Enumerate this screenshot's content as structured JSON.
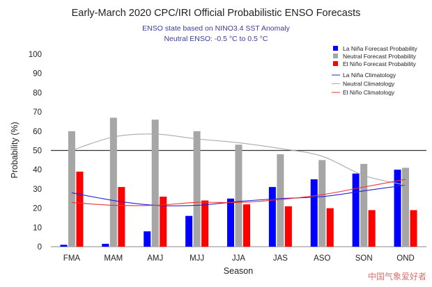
{
  "chart_data": {
    "type": "bar",
    "title": "Early-March 2020 CPC/IRI Official Probabilistic ENSO Forecasts",
    "subtitle_lines": [
      "ENSO state based on NINO3.4 SST Anomaly",
      "Neutral ENSO: -0.5 °C to 0.5 °C"
    ],
    "xlabel": "Season",
    "ylabel": "Probability (%)",
    "ylim": [
      0,
      100
    ],
    "yticks": [
      0,
      10,
      20,
      30,
      40,
      50,
      60,
      70,
      80,
      90,
      100
    ],
    "reference_line": 50,
    "categories": [
      "FMA",
      "MAM",
      "AMJ",
      "MJJ",
      "JJA",
      "JAS",
      "ASO",
      "SON",
      "OND"
    ],
    "series": [
      {
        "name": "La Niña Forecast Probability",
        "color": "#0000ff",
        "values": [
          1,
          1.5,
          8,
          16,
          25,
          31,
          35,
          38,
          40
        ]
      },
      {
        "name": "Neutral Forecast Probability",
        "color": "#a6a6a6",
        "values": [
          60,
          67,
          66,
          60,
          53,
          48,
          45,
          43,
          41
        ]
      },
      {
        "name": "El Niño Forecast Probability",
        "color": "#ff0000",
        "values": [
          39,
          31,
          26,
          24,
          22,
          21,
          20,
          19,
          19
        ]
      }
    ],
    "climatology": [
      {
        "name": "La Niña Climatology",
        "color": "#2222dd",
        "values": [
          28,
          24,
          21.5,
          21.5,
          23.5,
          25,
          26,
          29,
          32
        ]
      },
      {
        "name": "Neutral Climatology",
        "color": "#aaaaaa",
        "values": [
          50,
          57,
          58.5,
          56,
          54,
          51,
          47,
          37,
          32
        ]
      },
      {
        "name": "El Niño Climatology",
        "color": "#ee3333",
        "values": [
          23,
          21.5,
          21.5,
          23,
          23,
          24.5,
          27,
          31,
          35
        ]
      }
    ]
  },
  "watermark": "中国气象爱好者"
}
